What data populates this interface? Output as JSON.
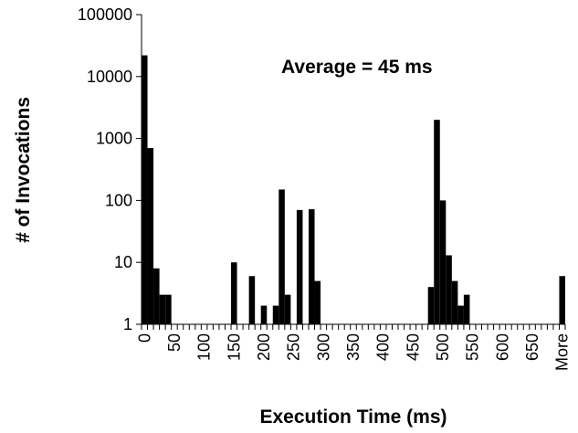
{
  "chart_data": {
    "type": "bar",
    "title": "",
    "xlabel": "Execution Time (ms)",
    "ylabel": "# of Invocations",
    "yscale": "log",
    "ylim": [
      1,
      100000
    ],
    "y_ticks": [
      "1",
      "10",
      "100",
      "1000",
      "10000",
      "100000"
    ],
    "annotation": "Average =  45 ms",
    "legend": "none",
    "grid": false,
    "x_tick_labels": [
      "0",
      "50",
      "100",
      "150",
      "200",
      "250",
      "300",
      "350",
      "400",
      "450",
      "500",
      "550",
      "600",
      "650",
      "More"
    ],
    "bin_width_ms": 10,
    "categories": [
      "0",
      "10",
      "20",
      "30",
      "40",
      "50",
      "60",
      "70",
      "80",
      "90",
      "100",
      "110",
      "120",
      "130",
      "140",
      "150",
      "160",
      "170",
      "180",
      "190",
      "200",
      "210",
      "220",
      "230",
      "240",
      "250",
      "260",
      "270",
      "280",
      "290",
      "300",
      "310",
      "320",
      "330",
      "340",
      "350",
      "360",
      "370",
      "380",
      "390",
      "400",
      "410",
      "420",
      "430",
      "440",
      "450",
      "460",
      "470",
      "480",
      "490",
      "500",
      "510",
      "520",
      "530",
      "540",
      "550",
      "560",
      "570",
      "580",
      "590",
      "600",
      "610",
      "620",
      "630",
      "640",
      "650",
      "660",
      "670",
      "680",
      "690",
      "More"
    ],
    "values": [
      22000,
      700,
      8,
      3,
      3,
      1,
      1,
      1,
      1,
      1,
      1,
      1,
      1,
      1,
      1,
      10,
      1,
      1,
      6,
      1,
      2,
      1,
      2,
      150,
      3,
      1,
      70,
      1,
      72,
      5,
      1,
      1,
      1,
      1,
      1,
      1,
      1,
      1,
      1,
      1,
      1,
      1,
      1,
      1,
      1,
      1,
      1,
      1,
      4,
      2000,
      100,
      13,
      5,
      2,
      3,
      1,
      1,
      1,
      1,
      1,
      1,
      1,
      1,
      1,
      1,
      1,
      1,
      1,
      1,
      1,
      6
    ]
  }
}
